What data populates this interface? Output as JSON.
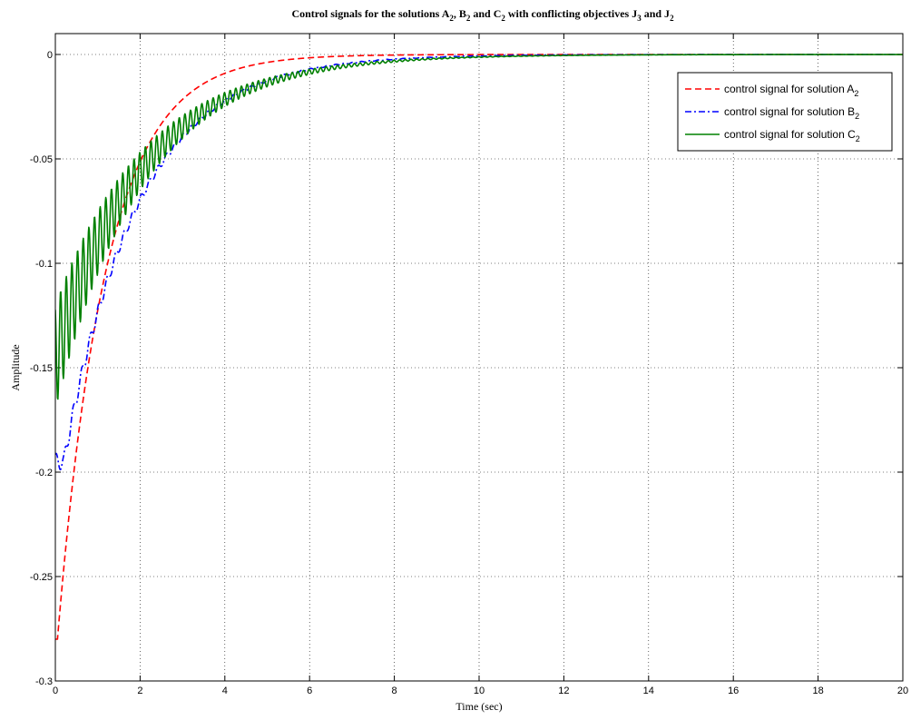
{
  "chart_data": {
    "type": "line",
    "title": {
      "prefix": "Control signals for the solutions A",
      "s1": "2",
      "mid1": ", B",
      "s2": "2",
      "mid2": " and C",
      "s3": "2",
      "mid3": " with conflicting objectives J",
      "s4": "3",
      "mid4": " and J",
      "s5": "2"
    },
    "xlabel": "Time (sec)",
    "ylabel": "Amplitude",
    "xlim": [
      0,
      20
    ],
    "ylim": [
      -0.3,
      0.01
    ],
    "xticks": [
      0,
      2,
      4,
      6,
      8,
      10,
      12,
      14,
      16,
      18,
      20
    ],
    "xtick_labels": [
      "0",
      "2",
      "4",
      "6",
      "8",
      "10",
      "12",
      "14",
      "16",
      "18",
      "20"
    ],
    "yticks": [
      0,
      -0.05,
      -0.1,
      -0.15,
      -0.2,
      -0.25,
      -0.3
    ],
    "ytick_labels": [
      "0",
      "-0.05",
      "-0.1",
      "-0.15",
      "-0.2",
      "-0.25",
      "-0.3"
    ],
    "grid": true,
    "legend_position": "top-right",
    "series": [
      {
        "name_text": "control signal for solution A",
        "name_sub": "2",
        "color": "#ff0000",
        "dash": "dashed",
        "model": {
          "amp": 0.28,
          "tau": 1.15,
          "dead": 0.05,
          "ripple": 0,
          "rippleDecay": 1,
          "rippleFreq": 0
        }
      },
      {
        "name_text": "control signal for solution B",
        "name_sub": "2",
        "color": "#0000ff",
        "dash": "dashdot",
        "model": {
          "amp": 0.195,
          "tau": 1.75,
          "dead": 0.2,
          "ripple": 0.004,
          "rippleDecay": 2.5,
          "rippleFreq": 5.0
        }
      },
      {
        "name_text": "control signal for solution C",
        "name_sub": "2",
        "color": "#008000",
        "dash": "solid",
        "model": {
          "amp": 0.145,
          "tau": 2.1,
          "dead": 0,
          "ripple": 0.025,
          "rippleDecay": 2.0,
          "rippleFreq": 7.5
        }
      }
    ]
  }
}
